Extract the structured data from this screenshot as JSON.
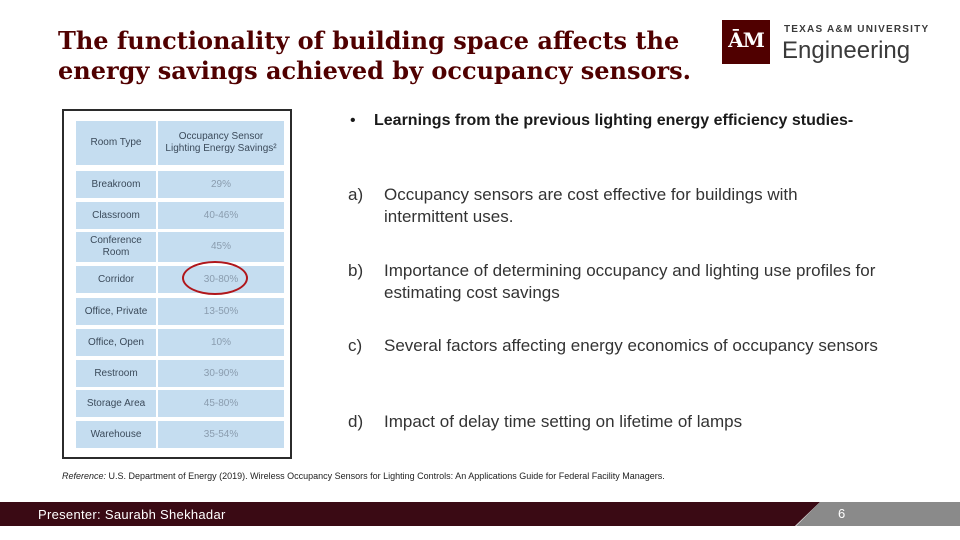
{
  "title": {
    "line1": "The functionality of building space affects the",
    "line2": "energy savings achieved by occupancy sensors."
  },
  "logo": {
    "mark": "ĀM",
    "university": "TEXAS A&M UNIVERSITY",
    "department": "Engineering"
  },
  "table": {
    "headers": [
      "Room Type",
      "Occupancy Sensor Lighting Energy Savings²"
    ],
    "rows": [
      {
        "room": "Breakroom",
        "savings": "29%"
      },
      {
        "room": "Classroom",
        "savings": "40-46%"
      },
      {
        "room": "Conference Room",
        "savings": "45%"
      },
      {
        "room": "Corridor",
        "savings": "30-80%"
      },
      {
        "room": "Office, Private",
        "savings": "13-50%"
      },
      {
        "room": "Office, Open",
        "savings": "10%"
      },
      {
        "room": "Restroom",
        "savings": "30-90%"
      },
      {
        "room": "Storage Area",
        "savings": "45-80%"
      },
      {
        "room": "Warehouse",
        "savings": "35-54%"
      }
    ]
  },
  "bullet": {
    "marker": "•",
    "text": "Learnings from the previous lighting energy efficiency studies-"
  },
  "items": [
    {
      "label": "a)",
      "text": "Occupancy sensors are cost effective for buildings with intermittent uses."
    },
    {
      "label": "b)",
      "text": "Importance of determining occupancy and lighting use profiles for estimating cost savings"
    },
    {
      "label": "c)",
      "text": "Several factors affecting energy economics of occupancy sensors"
    },
    {
      "label": "d)",
      "text": "Impact of delay time setting on lifetime of lamps"
    }
  ],
  "reference": {
    "prefix": "Reference:",
    "text": " U.S. Department of Energy (2019). Wireless Occupancy Sensors for Lighting Controls: An Applications Guide for Federal Facility Managers."
  },
  "footer": {
    "presenter": "Presenter: Saurabh Shekhadar",
    "page": "6"
  },
  "colors": {
    "maroon": "#500000",
    "table_cell": "#c5ddf0",
    "highlight_circle": "#b0161b",
    "footer_dark": "#3a0a14",
    "footer_gray": "#8a8a8a"
  }
}
